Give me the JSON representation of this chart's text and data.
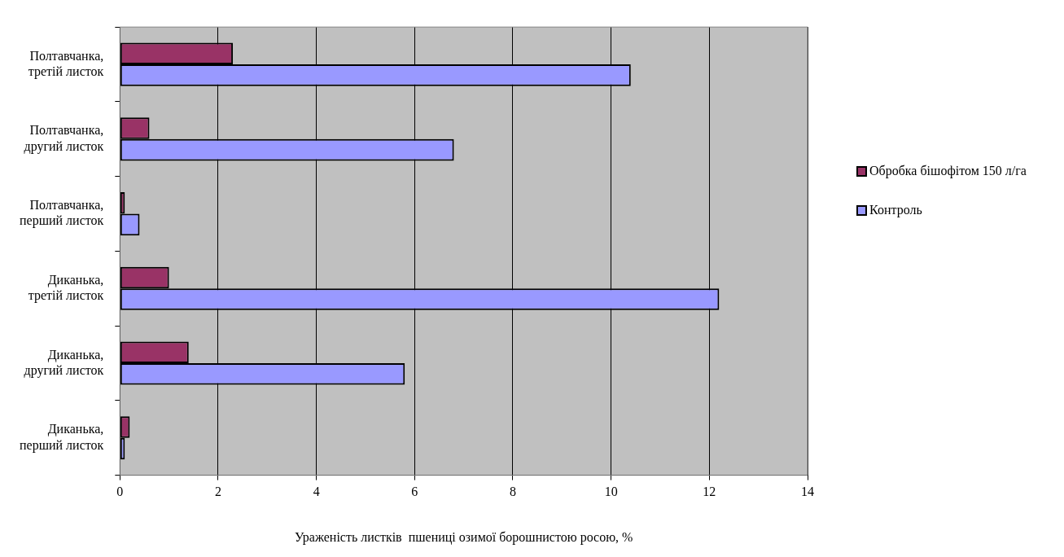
{
  "chart_data": {
    "type": "bar",
    "orientation": "horizontal",
    "xlabel": "Ураженість листків  пшениці озимої борошнистою росою, %",
    "categories": [
      "Полтавчанка, третій листок",
      "Полтавчанка, другий листок",
      "Полтавчанка, перший листок",
      "Диканька, третій листок",
      "Диканька, другий листок",
      "Диканька, перший листок"
    ],
    "series": [
      {
        "name": "Обробка бішофітом 150 л/га",
        "color": "#993366",
        "values": [
          2.3,
          0.6,
          0.1,
          1.0,
          1.4,
          0.2
        ]
      },
      {
        "name": "Контроль",
        "color": "#9999ff",
        "values": [
          10.4,
          6.8,
          0.4,
          12.2,
          5.8,
          0.1
        ]
      }
    ],
    "xlim": [
      0,
      14
    ],
    "xticks": [
      0,
      2,
      4,
      6,
      8,
      10,
      12,
      14
    ],
    "grid": "x",
    "legend": "right"
  }
}
